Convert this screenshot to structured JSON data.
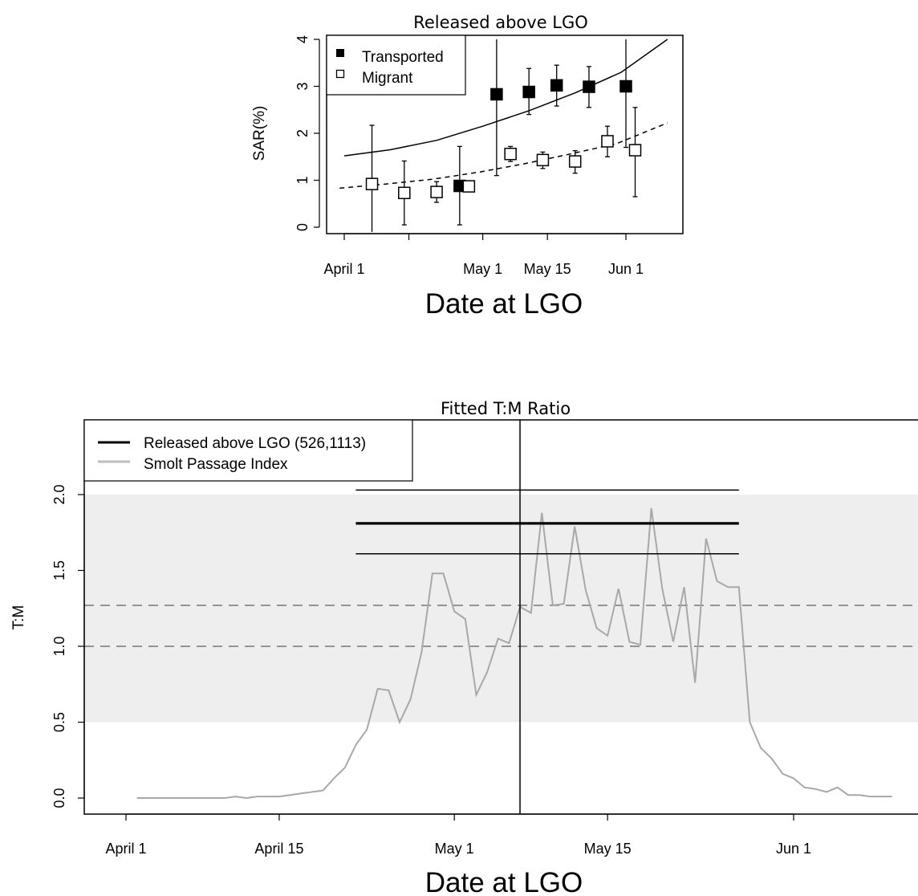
{
  "chart_data": [
    {
      "type": "scatter",
      "title": "Released above LGO",
      "xlabel": "Date at LGO",
      "ylabel": "SAR(%)",
      "x_ticks": [
        "April 1",
        "May 1",
        "May 15",
        "Jun 1"
      ],
      "y_ticks": [
        "0",
        "1",
        "2",
        "3",
        "4"
      ],
      "ylim": [
        0,
        4
      ],
      "legend_position": "top-left",
      "series": [
        {
          "name": "Transported",
          "marker": "filled-square",
          "points": [
            {
              "date": "Apr 26",
              "y": 0.88,
              "lo": 0.05,
              "hi": 1.72
            },
            {
              "date": "May 4",
              "y": 2.83,
              "lo": 1.1,
              "hi": 4.0
            },
            {
              "date": "May 11",
              "y": 2.88,
              "lo": 2.4,
              "hi": 3.38
            },
            {
              "date": "May 17",
              "y": 3.02,
              "lo": 2.58,
              "hi": 3.45
            },
            {
              "date": "May 24",
              "y": 2.99,
              "lo": 2.55,
              "hi": 3.42
            },
            {
              "date": "Jun 1",
              "y": 3.0,
              "lo": 1.7,
              "hi": 4.0
            }
          ]
        },
        {
          "name": "Migrant",
          "marker": "open-square",
          "points": [
            {
              "date": "Apr 7",
              "y": 0.92,
              "lo": -0.1,
              "hi": 2.17
            },
            {
              "date": "Apr 14",
              "y": 0.73,
              "lo": 0.05,
              "hi": 1.41
            },
            {
              "date": "Apr 21",
              "y": 0.75,
              "lo": 0.53,
              "hi": 0.97
            },
            {
              "date": "Apr 28",
              "y": 0.87,
              "lo": 0.8,
              "hi": 0.95
            },
            {
              "date": "May 7",
              "y": 1.56,
              "lo": 1.4,
              "hi": 1.72
            },
            {
              "date": "May 14",
              "y": 1.43,
              "lo": 1.25,
              "hi": 1.6
            },
            {
              "date": "May 21",
              "y": 1.4,
              "lo": 1.15,
              "hi": 1.63
            },
            {
              "date": "May 28",
              "y": 1.83,
              "lo": 1.5,
              "hi": 2.15
            },
            {
              "date": "Jun 3",
              "y": 1.64,
              "lo": 0.65,
              "hi": 2.55
            }
          ]
        },
        {
          "name": "Transported fit",
          "style": "solid-line",
          "x": [
            "Apr 1",
            "Apr 11",
            "Apr 21",
            "May 1",
            "May 11",
            "May 21",
            "May 31",
            "Jun 10"
          ],
          "y": [
            1.52,
            1.65,
            1.85,
            2.15,
            2.48,
            2.86,
            3.3,
            4.0
          ]
        },
        {
          "name": "Migrant fit",
          "style": "dashed-line",
          "x": [
            "Mar 31",
            "Apr 10",
            "Apr 20",
            "Apr 30",
            "May 10",
            "May 20",
            "May 30",
            "Jun 10"
          ],
          "y": [
            0.83,
            0.92,
            1.02,
            1.17,
            1.35,
            1.56,
            1.78,
            2.22
          ]
        }
      ]
    },
    {
      "type": "line",
      "title": "Fitted T:M Ratio",
      "xlabel": "Date at LGO",
      "ylabel": "T:M",
      "x_ticks": [
        "April 1",
        "April 15",
        "May 1",
        "May 15",
        "Jun 1"
      ],
      "y_ticks": [
        "0.0",
        "0.5",
        "1.0",
        "1.5",
        "2.0"
      ],
      "ylim": [
        -0.05,
        2.45
      ],
      "legend_position": "top-left",
      "legend": [
        {
          "label": "Released above LGO  (526,1113)",
          "color": "#000000"
        },
        {
          "label": "Smolt Passage Index",
          "color": "#bdbdbd"
        }
      ],
      "shaded_band": {
        "from": 0.5,
        "to": 2.0,
        "color": "#eeeeee"
      },
      "reference_lines": [
        1.0,
        1.27
      ],
      "vertical_line_date": "May 7",
      "fitted_ratio": {
        "from": "Apr 22",
        "to": "May 27",
        "estimate": 1.81,
        "lower": 1.61,
        "upper": 2.03
      },
      "series": [
        {
          "name": "Smolt Passage Index",
          "color": "#a8a8a8",
          "x_start": "Apr 2",
          "x_step_days": 1,
          "values": [
            0,
            0,
            0,
            0,
            0,
            0,
            0,
            0,
            0,
            0.01,
            0,
            0.01,
            0.01,
            0.01,
            0.02,
            0.03,
            0.04,
            0.05,
            0.13,
            0.2,
            0.35,
            0.45,
            0.72,
            0.71,
            0.5,
            0.65,
            0.96,
            1.48,
            1.48,
            1.23,
            1.18,
            0.68,
            0.83,
            1.05,
            1.02,
            1.26,
            1.22,
            1.88,
            1.27,
            1.28,
            1.79,
            1.37,
            1.12,
            1.07,
            1.38,
            1.03,
            1.01,
            1.91,
            1.38,
            1.03,
            1.39,
            0.76,
            1.71,
            1.43,
            1.39,
            1.39,
            0.5,
            0.33,
            0.26,
            0.16,
            0.13,
            0.07,
            0.06,
            0.04,
            0.07,
            0.02,
            0.02,
            0.01,
            0.01,
            0.01
          ]
        }
      ]
    }
  ]
}
